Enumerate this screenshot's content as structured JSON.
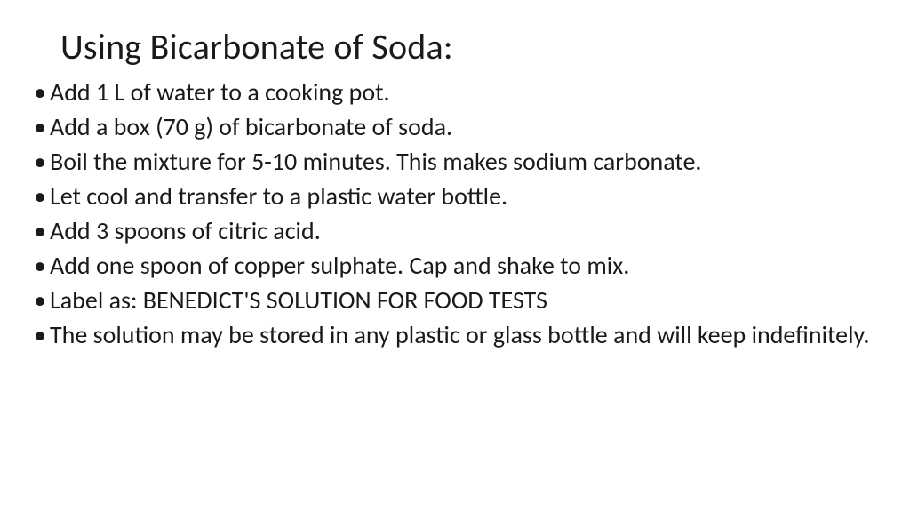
{
  "slide": {
    "title": "Using Bicarbonate of Soda:",
    "title_fontsize": 40,
    "title_weight": 400,
    "body_fontsize": 28,
    "text_color": "#1a1a1a",
    "background_color": "#ffffff",
    "font_family": "Calibri",
    "bullets": [
      {
        "text": "Add 1 L of water to a cooking pot.",
        "justify": false
      },
      {
        "text": "Add a box (70 g) of bicarbonate of soda.",
        "justify": false
      },
      {
        "text": "Boil the mixture for 5-10 minutes. This makes sodium carbonate.",
        "justify": true
      },
      {
        "text": "Let cool and transfer to a plastic water bottle.",
        "justify": false
      },
      {
        "text": "Add 3 spoons of citric acid.",
        "justify": false
      },
      {
        "text": "Add one spoon of copper sulphate. Cap and shake to mix.",
        "justify": false
      },
      {
        "text": "Label as: BENEDICT'S SOLUTION FOR FOOD TESTS",
        "justify": false
      },
      {
        "text": "The solution may be stored in any plastic or glass bottle and will keep indefinitely.",
        "justify": true
      }
    ]
  }
}
